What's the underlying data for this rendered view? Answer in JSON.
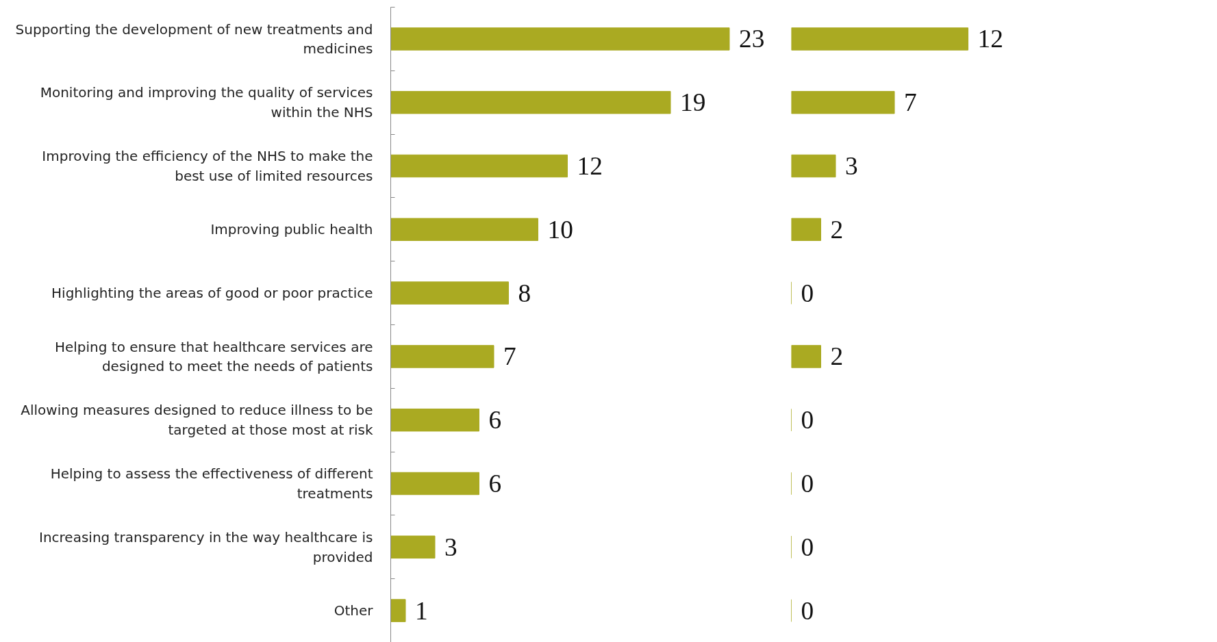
{
  "chart_data": [
    {
      "type": "bar",
      "orientation": "horizontal",
      "categories": [
        "Supporting the development of new treatments and medicines",
        "Monitoring and improving the quality of services within the NHS",
        "Improving the efficiency of the NHS to make the best use of limited resources",
        "Improving public health",
        "Highlighting the areas of good or poor practice",
        "Helping to ensure that healthcare services are designed to meet the needs of patients",
        "Allowing measures designed to reduce illness to be targeted at those most at risk",
        "Helping to assess the effectiveness of different treatments",
        "Increasing transparency in the way healthcare is provided",
        "Other"
      ],
      "values": [
        23,
        19,
        12,
        10,
        8,
        7,
        6,
        6,
        3,
        1
      ],
      "color": "#aaaa22",
      "data_labels": true,
      "grid": false,
      "tick_labels": "y"
    },
    {
      "type": "bar",
      "orientation": "horizontal",
      "categories": [
        "Supporting the development of new treatments and medicines",
        "Monitoring and improving the quality of services within the NHS",
        "Improving the efficiency of the NHS to make the best use of limited resources",
        "Improving public health",
        "Highlighting the areas of good or poor practice",
        "Helping to ensure that healthcare services are designed to meet the needs of patients",
        "Allowing measures designed to reduce illness to be targeted at those most at risk",
        "Helping to assess the effectiveness of different treatments",
        "Increasing transparency in the way healthcare is provided",
        "Other"
      ],
      "values": [
        12,
        7,
        3,
        2,
        0,
        2,
        0,
        0,
        0,
        0
      ],
      "color": "#aaaa22",
      "data_labels": true,
      "grid": false,
      "tick_labels": false
    }
  ]
}
